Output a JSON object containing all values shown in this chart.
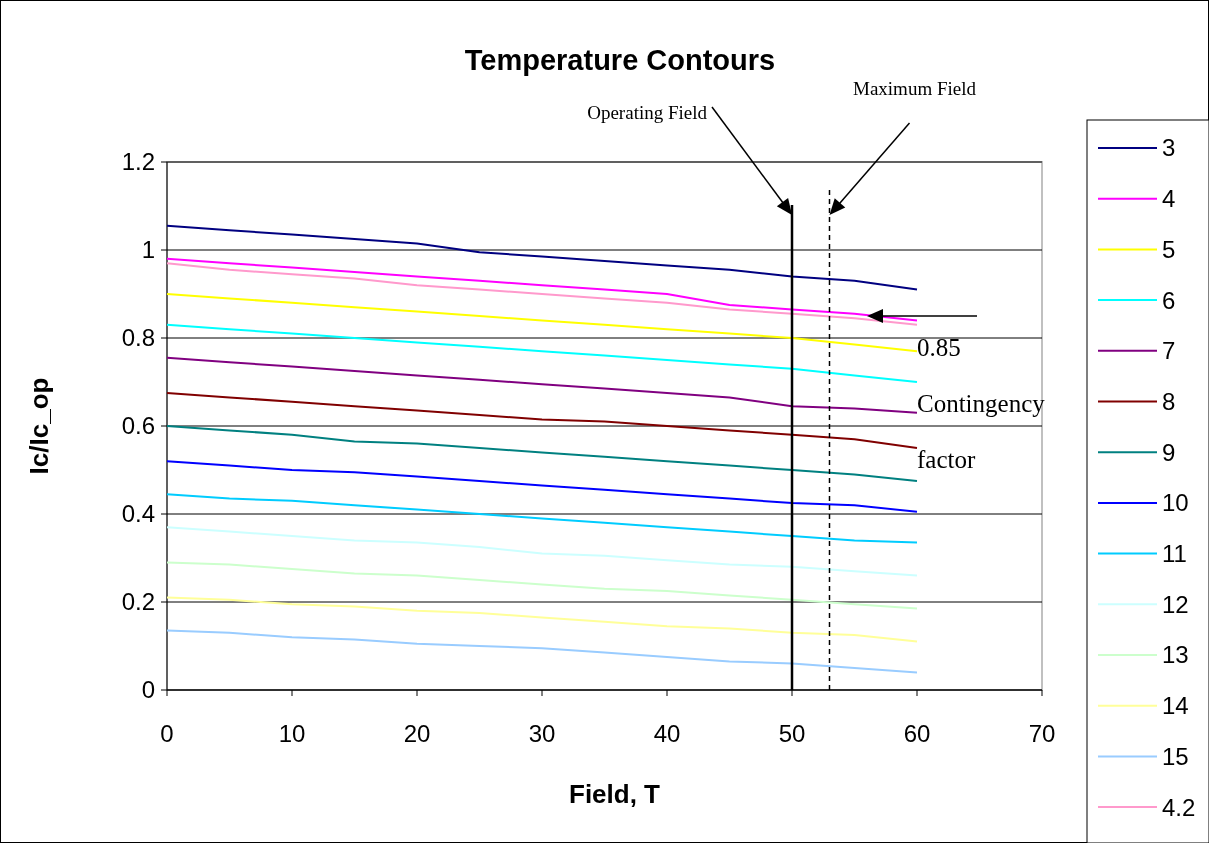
{
  "chart_data": {
    "type": "line",
    "title": "Temperature Contours",
    "xlabel": "Field, T",
    "ylabel": "Ic/Ic_op",
    "x": [
      0,
      5,
      10,
      15,
      20,
      25,
      30,
      35,
      40,
      45,
      50,
      55,
      60
    ],
    "xlim": [
      0,
      70
    ],
    "xticks": [
      0,
      10,
      20,
      30,
      40,
      50,
      60,
      70
    ],
    "ylim": [
      0,
      1.2
    ],
    "yticks": [
      0,
      0.2,
      0.4,
      0.6,
      0.8,
      1,
      1.2
    ],
    "grid": "y",
    "legend": "right",
    "marker": "none",
    "line_style": "solid",
    "series": [
      {
        "name": "3",
        "color": "#000080",
        "values": [
          1.055,
          1.045,
          1.035,
          1.025,
          1.015,
          0.995,
          0.985,
          0.975,
          0.965,
          0.955,
          0.94,
          0.93,
          0.91
        ]
      },
      {
        "name": "4",
        "color": "#ff00ff",
        "values": [
          0.98,
          0.97,
          0.96,
          0.95,
          0.94,
          0.93,
          0.92,
          0.91,
          0.9,
          0.875,
          0.865,
          0.855,
          0.84
        ]
      },
      {
        "name": "5",
        "color": "#ffff00",
        "values": [
          0.9,
          0.89,
          0.88,
          0.87,
          0.86,
          0.85,
          0.84,
          0.83,
          0.82,
          0.81,
          0.8,
          0.785,
          0.77
        ]
      },
      {
        "name": "6",
        "color": "#00ffff",
        "values": [
          0.83,
          0.82,
          0.81,
          0.8,
          0.79,
          0.78,
          0.77,
          0.76,
          0.75,
          0.74,
          0.73,
          0.715,
          0.7
        ]
      },
      {
        "name": "7",
        "color": "#800080",
        "values": [
          0.755,
          0.745,
          0.735,
          0.725,
          0.715,
          0.705,
          0.695,
          0.685,
          0.675,
          0.665,
          0.645,
          0.64,
          0.63
        ]
      },
      {
        "name": "8",
        "color": "#800000",
        "values": [
          0.675,
          0.665,
          0.655,
          0.645,
          0.635,
          0.625,
          0.615,
          0.61,
          0.6,
          0.59,
          0.58,
          0.57,
          0.55
        ]
      },
      {
        "name": "9",
        "color": "#008080",
        "values": [
          0.6,
          0.59,
          0.58,
          0.565,
          0.56,
          0.55,
          0.54,
          0.53,
          0.52,
          0.51,
          0.5,
          0.49,
          0.475
        ]
      },
      {
        "name": "10",
        "color": "#0000ff",
        "values": [
          0.52,
          0.51,
          0.5,
          0.495,
          0.485,
          0.475,
          0.465,
          0.455,
          0.445,
          0.435,
          0.425,
          0.42,
          0.405
        ]
      },
      {
        "name": "11",
        "color": "#00ccff",
        "values": [
          0.445,
          0.435,
          0.43,
          0.42,
          0.41,
          0.4,
          0.39,
          0.38,
          0.37,
          0.36,
          0.35,
          0.34,
          0.335
        ]
      },
      {
        "name": "12",
        "color": "#ccffff",
        "values": [
          0.37,
          0.36,
          0.35,
          0.34,
          0.335,
          0.325,
          0.31,
          0.305,
          0.295,
          0.285,
          0.28,
          0.27,
          0.26
        ]
      },
      {
        "name": "13",
        "color": "#ccffcc",
        "values": [
          0.29,
          0.285,
          0.275,
          0.265,
          0.26,
          0.25,
          0.24,
          0.23,
          0.225,
          0.215,
          0.205,
          0.195,
          0.185
        ]
      },
      {
        "name": "14",
        "color": "#ffff99",
        "values": [
          0.21,
          0.205,
          0.195,
          0.19,
          0.18,
          0.175,
          0.165,
          0.155,
          0.145,
          0.14,
          0.13,
          0.125,
          0.11
        ]
      },
      {
        "name": "15",
        "color": "#99ccff",
        "values": [
          0.135,
          0.13,
          0.12,
          0.115,
          0.105,
          0.1,
          0.095,
          0.085,
          0.075,
          0.065,
          0.06,
          0.05,
          0.04
        ]
      },
      {
        "name": "4.2",
        "color": "#ff99cc",
        "values": [
          0.97,
          0.955,
          0.945,
          0.935,
          0.92,
          0.91,
          0.9,
          0.89,
          0.88,
          0.865,
          0.855,
          0.845,
          0.83
        ]
      }
    ],
    "ref_lines": [
      {
        "axis": "x",
        "value": 50,
        "color": "#000000",
        "line_style": "solid"
      },
      {
        "axis": "x",
        "value": 53,
        "color": "#000000",
        "line_style": "dashed"
      }
    ],
    "annotations": [
      "Operating Field",
      "Maximum Field",
      {
        "text": "0.85 Contingency factor",
        "x": 56,
        "y": 0.85
      }
    ]
  }
}
